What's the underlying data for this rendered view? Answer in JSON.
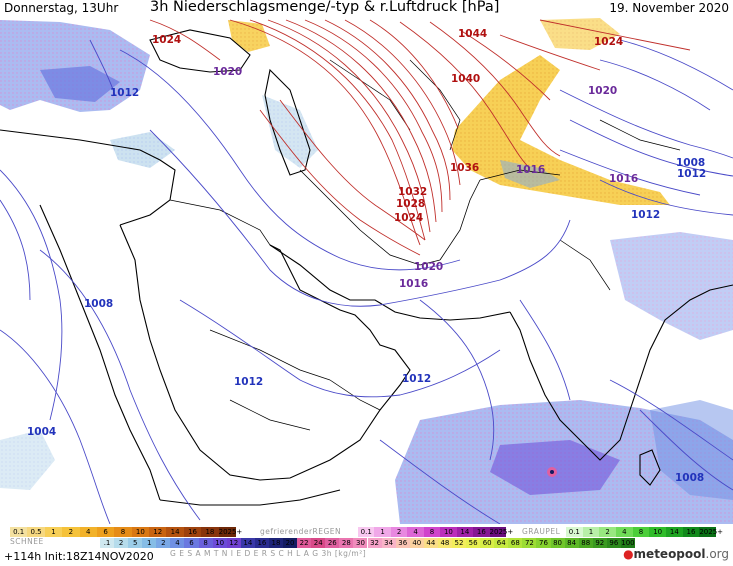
{
  "header": {
    "day_time": "Donnerstag, 13Uhr",
    "title": "3h Niederschlagsmenge/-typ & r.Luftdruck [hPa]",
    "date": "19. November 2020"
  },
  "pressure_labels": [
    {
      "text": "1024",
      "color": "#b01010"
    },
    {
      "text": "1020",
      "color": "#6a2a9a"
    },
    {
      "text": "1012",
      "color": "#2233bb"
    },
    {
      "text": "1044",
      "color": "#b01010"
    },
    {
      "text": "1024",
      "color": "#b01010"
    },
    {
      "text": "1040",
      "color": "#b01010"
    },
    {
      "text": "1020",
      "color": "#6a2a9a"
    },
    {
      "text": "1036",
      "color": "#b01010"
    },
    {
      "text": "1016",
      "color": "#6a2a9a"
    },
    {
      "text": "1008",
      "color": "#2233bb"
    },
    {
      "text": "1012",
      "color": "#2233bb"
    },
    {
      "text": "1016",
      "color": "#6a2a9a"
    },
    {
      "text": "1012",
      "color": "#2233bb"
    },
    {
      "text": "1032",
      "color": "#b01010"
    },
    {
      "text": "1028",
      "color": "#b01010"
    },
    {
      "text": "1024",
      "color": "#b01010"
    },
    {
      "text": "1020",
      "color": "#6a2a9a"
    },
    {
      "text": "1016",
      "color": "#6a2a9a"
    },
    {
      "text": "1008",
      "color": "#2233bb"
    },
    {
      "text": "1012",
      "color": "#2233bb"
    },
    {
      "text": "1012",
      "color": "#2233bb"
    },
    {
      "text": "1004",
      "color": "#2233bb"
    },
    {
      "text": "1008",
      "color": "#2233bb"
    }
  ],
  "legend": {
    "snow": {
      "label": "SCHNEE",
      "values": [
        "0.1",
        "0.5",
        "1",
        "2",
        "4",
        "6",
        "8",
        "10",
        "12",
        "14",
        "16",
        "18",
        "2025+"
      ],
      "colors": [
        "#f4e1a0",
        "#f6d880",
        "#f7cf58",
        "#f5c23a",
        "#f2b22a",
        "#eda01e",
        "#e58c18",
        "#d97814",
        "#c86412",
        "#b45210",
        "#9e420e",
        "#88340c",
        "#6e2808"
      ]
    },
    "freezing_rain": {
      "label": "gefrierenderREGEN",
      "values": [
        "0.1",
        "1",
        "2",
        "4",
        "8",
        "10",
        "14",
        "16",
        "2025+"
      ],
      "colors": [
        "#f8c8f0",
        "#f0a8e8",
        "#e888e0",
        "#dd66d6",
        "#d044cc",
        "#bb2ebb",
        "#a020a8",
        "#861694",
        "#6a0e7e"
      ]
    },
    "graupel": {
      "label": "GRAUPEL",
      "values": [
        "0.1",
        "1",
        "2",
        "4",
        "8",
        "10",
        "14",
        "16",
        "2025+"
      ],
      "colors": [
        "#d8f8d0",
        "#b8f0a8",
        "#98e880",
        "#70dc58",
        "#4cce3a",
        "#30bc2a",
        "#1ea422",
        "#128a1c",
        "#0a7016"
      ]
    },
    "total": {
      "label": "G E S A M T N I E D E R S C H L A G   3h   [kg/m²]",
      "values": [
        ".1",
        "2",
        "5",
        "1",
        "2",
        "4",
        "6",
        "8",
        "10",
        "12",
        "14",
        "16",
        "18",
        "20",
        "22",
        "24",
        "26",
        "28",
        "30",
        "32",
        "34",
        "36",
        "40",
        "44",
        "48",
        "52",
        "56",
        "60",
        "64",
        "68",
        "72",
        "76",
        "80",
        "84",
        "88",
        "92",
        "96",
        "100"
      ],
      "colors": [
        "#cfe8f0",
        "#b6dcec",
        "#9ccde8",
        "#86bde6",
        "#7aa8e6",
        "#7090e4",
        "#6a78e0",
        "#6a60dc",
        "#6c4cd8",
        "#7040d0",
        "#3a38a8",
        "#2a2c90",
        "#1e2478",
        "#141c62",
        "#e05a9a",
        "#d84a88",
        "#e060a0",
        "#ea76b0",
        "#f08cbc",
        "#f6a2c8",
        "#f9b4c8",
        "#fbc4b4",
        "#fbd2a0",
        "#fbde88",
        "#f8e870",
        "#f2ee5c",
        "#e8f050",
        "#d8ee48",
        "#c6ea40",
        "#b2e43a",
        "#9cdc34",
        "#86d22e",
        "#70c62a",
        "#5cb826",
        "#4aa822",
        "#3a9a20",
        "#2c8a1c",
        "#1e7a18"
      ]
    }
  },
  "run_info": "+114h  Init:18Z14NOV2020",
  "brand": {
    "name": "meteopool",
    "suffix": ".org"
  }
}
